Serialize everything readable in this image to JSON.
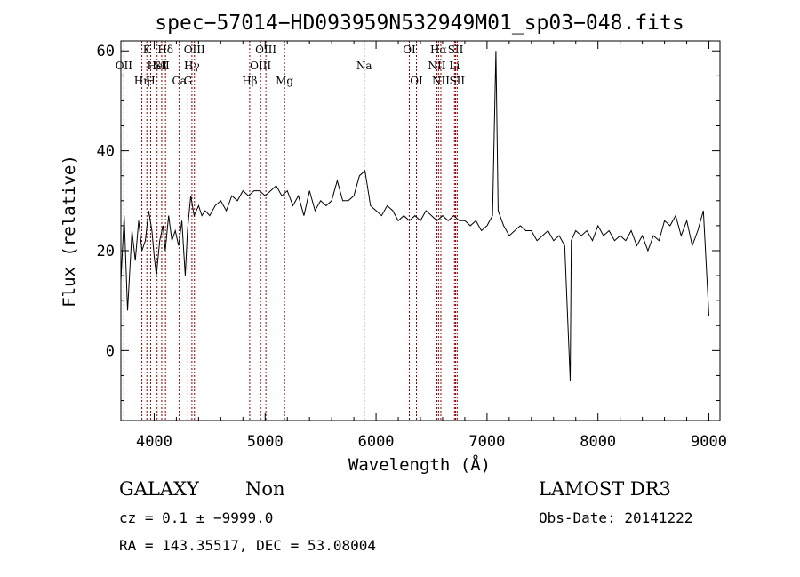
{
  "chart_data": {
    "type": "line",
    "title": "spec−57014−HD093959N532949M01_sp03−048.fits",
    "xlabel": "Wavelength (Å)",
    "ylabel": "Flux (relative)",
    "xlim": [
      3700,
      9100
    ],
    "ylim": [
      -14,
      62
    ],
    "xticks": [
      4000,
      5000,
      6000,
      7000,
      8000,
      9000
    ],
    "yticks": [
      0,
      20,
      40,
      60
    ],
    "line_color": "#000000",
    "marker_color": "#8b0000",
    "series": [
      {
        "x": [
          3700,
          3730,
          3760,
          3800,
          3830,
          3860,
          3890,
          3920,
          3950,
          3980,
          4000,
          4020,
          4050,
          4080,
          4100,
          4130,
          4160,
          4190,
          4220,
          4250,
          4280,
          4300,
          4330,
          4360,
          4400,
          4430,
          4460,
          4500,
          4550,
          4600,
          4650,
          4700,
          4750,
          4800,
          4850,
          4900,
          4950,
          5000,
          5050,
          5100,
          5150,
          5200,
          5250,
          5300,
          5350,
          5400,
          5450,
          5500,
          5550,
          5600,
          5650,
          5700,
          5750,
          5800,
          5850,
          5900,
          5950,
          6000,
          6050,
          6100,
          6150,
          6200,
          6250,
          6300,
          6350,
          6400,
          6450,
          6500,
          6550,
          6600,
          6650,
          6700,
          6750,
          6800,
          6850,
          6900,
          6950,
          7000,
          7050,
          7080,
          7100,
          7150,
          7200,
          7250,
          7300,
          7350,
          7400,
          7450,
          7500,
          7550,
          7600,
          7650,
          7700,
          7750,
          7760,
          7800,
          7850,
          7900,
          7950,
          8000,
          8050,
          8100,
          8150,
          8200,
          8250,
          8300,
          8350,
          8400,
          8450,
          8500,
          8550,
          8600,
          8650,
          8700,
          8750,
          8800,
          8850,
          8900,
          8950,
          9000
        ],
        "y": [
          14,
          27,
          8,
          24,
          18,
          26,
          20,
          22,
          28,
          24,
          19,
          15,
          22,
          25,
          20,
          27,
          22,
          24,
          21,
          26,
          15,
          24,
          31,
          27,
          29,
          27,
          28,
          27,
          29,
          30,
          28,
          31,
          30,
          32,
          31,
          32,
          32,
          31,
          32,
          33,
          31,
          32,
          29,
          31,
          27,
          32,
          28,
          30,
          29,
          30,
          34,
          30,
          30,
          31,
          35,
          36,
          29,
          28,
          27,
          29,
          28,
          26,
          27,
          26,
          27,
          26,
          28,
          27,
          26,
          27,
          26,
          27,
          26,
          26,
          25,
          26,
          24,
          25,
          27,
          60,
          28,
          25,
          23,
          24,
          25,
          24,
          24,
          22,
          23,
          24,
          22,
          23,
          21,
          -6,
          22,
          24,
          23,
          24,
          22,
          25,
          23,
          24,
          22,
          23,
          22,
          24,
          21,
          23,
          20,
          23,
          22,
          26,
          25,
          27,
          23,
          26,
          21,
          24,
          28,
          7
        ]
      }
    ],
    "line_markers": [
      {
        "x": 3727,
        "label": "OII",
        "row": 2
      },
      {
        "x": 3968,
        "label": "H",
        "row": 3
      },
      {
        "x": 3934,
        "label": "K",
        "row": 1
      },
      {
        "x": 4102,
        "label": "Hδ",
        "row": 1
      },
      {
        "x": 4026,
        "label": "HeI",
        "row": 2
      },
      {
        "x": 3889,
        "label": "Hη",
        "row": 3
      },
      {
        "x": 4068,
        "label": "SII",
        "row": 2
      },
      {
        "x": 4226,
        "label": "Ca",
        "row": 3
      },
      {
        "x": 4304,
        "label": "G",
        "row": 3
      },
      {
        "x": 4340,
        "label": "Hγ",
        "row": 2
      },
      {
        "x": 4363,
        "label": "OIII",
        "row": 1
      },
      {
        "x": 4861,
        "label": "Hβ",
        "row": 3
      },
      {
        "x": 4959,
        "label": "OIII",
        "row": 2
      },
      {
        "x": 5007,
        "label": "OIII",
        "row": 1
      },
      {
        "x": 5175,
        "label": "Mg",
        "row": 3
      },
      {
        "x": 5893,
        "label": "Na",
        "row": 2
      },
      {
        "x": 6300,
        "label": "OI",
        "row": 1
      },
      {
        "x": 6364,
        "label": "OI",
        "row": 3
      },
      {
        "x": 6548,
        "label": "NII",
        "row": 2
      },
      {
        "x": 6563,
        "label": "Hα",
        "row": 1
      },
      {
        "x": 6584,
        "label": "NII",
        "row": 3
      },
      {
        "x": 6707,
        "label": "Li",
        "row": 2
      },
      {
        "x": 6717,
        "label": "SII",
        "row": 1
      },
      {
        "x": 6731,
        "label": "SII",
        "row": 3
      }
    ],
    "grid": false,
    "legend": "none"
  },
  "info": {
    "class": "GALAXY",
    "subclass": "Non",
    "survey": "LAMOST DR3",
    "cz": "cz = 0.1 ± −9999.0",
    "obs_date": "Obs-Date: 20141222",
    "radec": "RA = 143.35517, DEC =  53.08004"
  }
}
